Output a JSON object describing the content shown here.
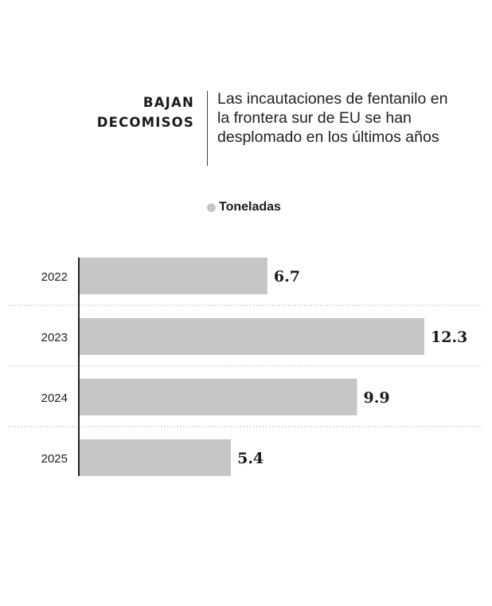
{
  "header": {
    "title_line1": "BAJAN",
    "title_line2": "DECOMISOS",
    "subtitle": "Las incautaciones de fentanilo en la frontera sur de EU se han desplomado en los últimos años"
  },
  "legend": {
    "label": "Toneladas",
    "color": "#c6c6c7"
  },
  "chart_data": {
    "type": "bar",
    "orientation": "horizontal",
    "categories": [
      "2022",
      "2023",
      "2024",
      "2025"
    ],
    "series": [
      {
        "name": "Toneladas",
        "values": [
          6.7,
          12.3,
          9.9,
          5.4
        ]
      }
    ],
    "value_labels": [
      "6.7",
      "12.3",
      "9.9",
      "5.4"
    ],
    "xlim": [
      0,
      12.3
    ],
    "grid": false,
    "legend_position": "top",
    "colors": {
      "bar": "#c6c6c7",
      "axis": "#222222",
      "separator": "#b0b0b0"
    }
  }
}
